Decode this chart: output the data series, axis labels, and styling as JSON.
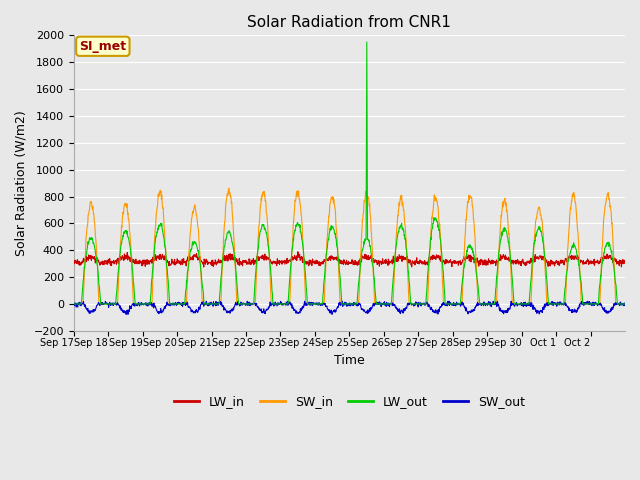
{
  "title": "Solar Radiation from CNR1",
  "xlabel": "Time",
  "ylabel": "Solar Radiation (W/m2)",
  "ylim": [
    -200,
    2000
  ],
  "yticks": [
    -200,
    0,
    200,
    400,
    600,
    800,
    1000,
    1200,
    1400,
    1600,
    1800,
    2000
  ],
  "annotation": "SI_met",
  "fig_bg": "#e8e8e8",
  "axes_bg": "#e8e8e8",
  "grid_color": "#ffffff",
  "line_colors": {
    "LW_in": "#cc0000",
    "SW_in": "#ff9900",
    "LW_out": "#00cc00",
    "SW_out": "#0000cc"
  },
  "xtick_labels": [
    "Sep 17",
    "Sep 18",
    "Sep 19",
    "Sep 20",
    "Sep 21",
    "Sep 22",
    "Sep 23",
    "Sep 24",
    "Sep 25",
    "Sep 26",
    "Sep 27",
    "Sep 28",
    "Sep 29",
    "Sep 30",
    "Oct 1",
    "Oct 2"
  ],
  "figsize": [
    6.4,
    4.8
  ],
  "dpi": 100
}
